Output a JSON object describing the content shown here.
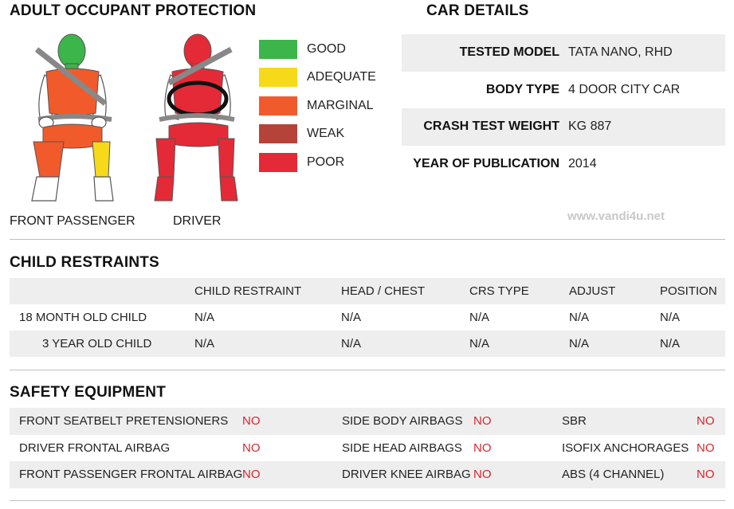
{
  "adult": {
    "title": "ADULT OCCUPANT PROTECTION",
    "front_passenger_label": "FRONT PASSENGER",
    "driver_label": "DRIVER"
  },
  "legend": [
    {
      "label": "GOOD",
      "color": "#3cb54a"
    },
    {
      "label": "ADEQUATE",
      "color": "#f6d918"
    },
    {
      "label": "MARGINAL",
      "color": "#f15a2b"
    },
    {
      "label": "WEAK",
      "color": "#b5433a"
    },
    {
      "label": "POOR",
      "color": "#e42a36"
    }
  ],
  "colors": {
    "good": "#3cb54a",
    "adequate": "#f6d918",
    "marginal": "#f15a2b",
    "weak": "#b5433a",
    "poor": "#e42a36",
    "no_text": "#d9262e"
  },
  "car_details": {
    "title": "CAR DETAILS",
    "rows": [
      {
        "key": "TESTED MODEL",
        "value": "TATA NANO, RHD"
      },
      {
        "key": "BODY TYPE",
        "value": "4 DOOR CITY CAR"
      },
      {
        "key": "CRASH TEST WEIGHT",
        "value": "KG 887"
      },
      {
        "key": "YEAR OF PUBLICATION",
        "value": "2014"
      }
    ]
  },
  "watermark": "www.vandi4u.net",
  "child_restraints": {
    "title": "CHILD RESTRAINTS",
    "headers": [
      "CHILD RESTRAINT",
      "HEAD / CHEST",
      "CRS TYPE",
      "ADJUST",
      "POSITION"
    ],
    "rows": [
      {
        "label": "18 MONTH OLD CHILD",
        "values": [
          "N/A",
          "N/A",
          "N/A",
          "N/A",
          "N/A"
        ]
      },
      {
        "label": "3 YEAR OLD CHILD",
        "values": [
          "N/A",
          "N/A",
          "N/A",
          "N/A",
          "N/A"
        ]
      }
    ]
  },
  "safety": {
    "title": "SAFETY EQUIPMENT",
    "rows": [
      [
        {
          "label": "FRONT SEATBELT PRETENSIONERS",
          "value": "NO"
        },
        {
          "label": "SIDE BODY AIRBAGS",
          "value": "NO"
        },
        {
          "label": "SBR",
          "value": "NO"
        }
      ],
      [
        {
          "label": "DRIVER FRONTAL AIRBAG",
          "value": "NO"
        },
        {
          "label": "SIDE HEAD AIRBAGS",
          "value": "NO"
        },
        {
          "label": "ISOFIX ANCHORAGES",
          "value": "NO"
        }
      ],
      [
        {
          "label": "FRONT PASSENGER FRONTAL AIRBAG",
          "value": "NO"
        },
        {
          "label": "DRIVER KNEE AIRBAG",
          "value": "NO"
        },
        {
          "label": "ABS (4 CHANNEL)",
          "value": "NO"
        }
      ]
    ]
  }
}
